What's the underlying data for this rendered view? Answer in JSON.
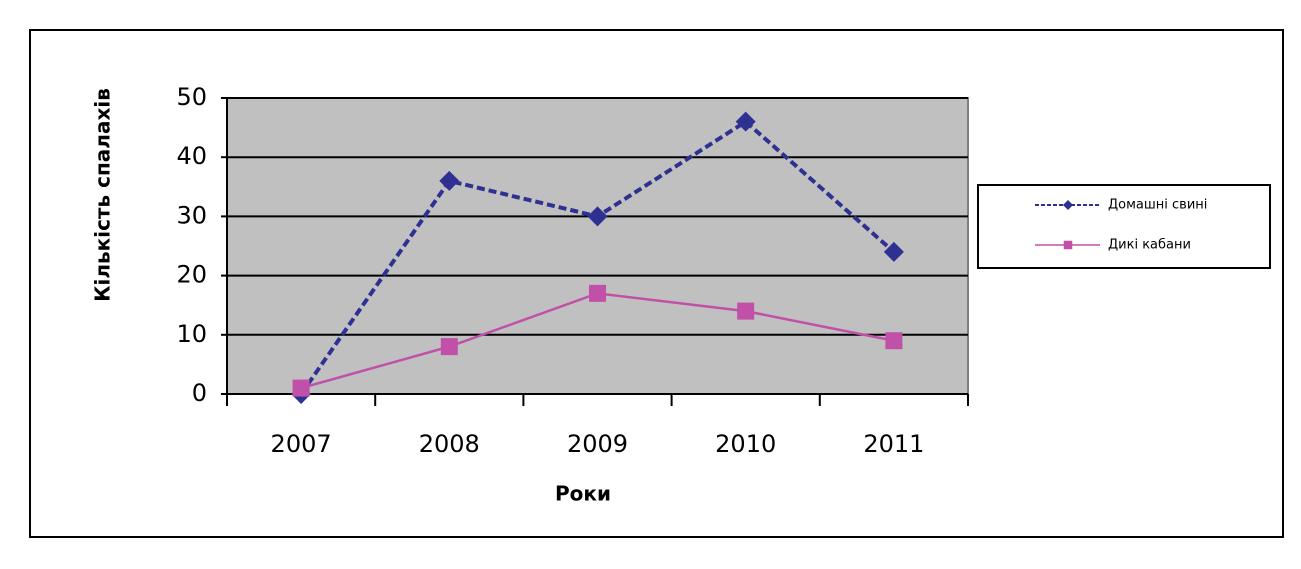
{
  "chart_data": {
    "type": "line",
    "categories": [
      "2007",
      "2008",
      "2009",
      "2010",
      "2011"
    ],
    "series": [
      {
        "name": "Домашні свині",
        "color": "#2e3192",
        "line_style": "dashed",
        "marker": "diamond",
        "values": [
          0,
          36,
          30,
          46,
          24
        ]
      },
      {
        "name": "Дикі кабани",
        "color": "#c050a8",
        "line_style": "solid",
        "marker": "square",
        "values": [
          1,
          8,
          17,
          14,
          9
        ]
      }
    ],
    "ylim": [
      0,
      50
    ],
    "yticks": [
      0,
      10,
      20,
      30,
      40,
      50
    ],
    "grid": true,
    "ylabel": "Кількість спалахів",
    "xlabel": "Роки",
    "plot_background": "#c0c0c0",
    "legend": "right"
  }
}
